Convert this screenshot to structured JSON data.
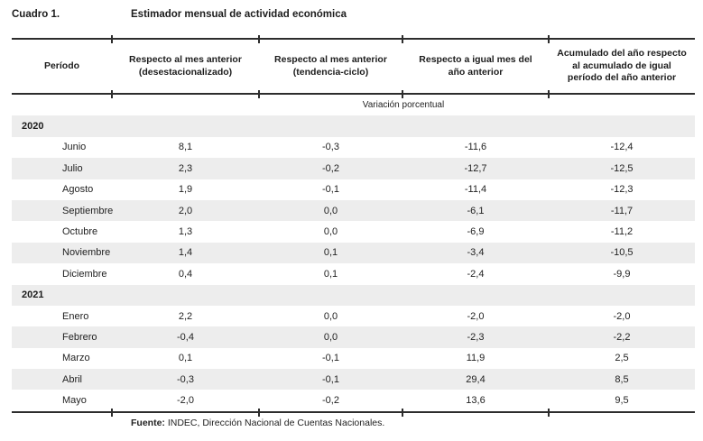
{
  "title": {
    "label": "Cuadro 1.",
    "text": "Estimador mensual de actividad económica"
  },
  "table": {
    "columns": [
      "Período",
      "Respecto al mes anterior\n(desestacionalizado)",
      "Respecto al mes anterior\n(tendencia-ciclo)",
      "Respecto a igual mes del\naño anterior",
      "Acumulado del año respecto\nal acumulado de igual\nperíodo del año anterior"
    ],
    "unit_note": "Variación porcentual",
    "rows": [
      {
        "type": "year",
        "label": "2020",
        "values": [
          "",
          "",
          "",
          ""
        ]
      },
      {
        "type": "month",
        "label": "Junio",
        "values": [
          "8,1",
          "-0,3",
          "-11,6",
          "-12,4"
        ]
      },
      {
        "type": "month",
        "label": "Julio",
        "values": [
          "2,3",
          "-0,2",
          "-12,7",
          "-12,5"
        ]
      },
      {
        "type": "month",
        "label": "Agosto",
        "values": [
          "1,9",
          "-0,1",
          "-11,4",
          "-12,3"
        ]
      },
      {
        "type": "month",
        "label": "Septiembre",
        "values": [
          "2,0",
          "0,0",
          "-6,1",
          "-11,7"
        ]
      },
      {
        "type": "month",
        "label": "Octubre",
        "values": [
          "1,3",
          "0,0",
          "-6,9",
          "-11,2"
        ]
      },
      {
        "type": "month",
        "label": "Noviembre",
        "values": [
          "1,4",
          "0,1",
          "-3,4",
          "-10,5"
        ]
      },
      {
        "type": "month",
        "label": "Diciembre",
        "values": [
          "0,4",
          "0,1",
          "-2,4",
          "-9,9"
        ]
      },
      {
        "type": "year",
        "label": "2021",
        "values": [
          "",
          "",
          "",
          ""
        ]
      },
      {
        "type": "month",
        "label": "Enero",
        "values": [
          "2,2",
          "0,0",
          "-2,0",
          "-2,0"
        ]
      },
      {
        "type": "month",
        "label": "Febrero",
        "values": [
          "-0,4",
          "0,0",
          "-2,3",
          "-2,2"
        ]
      },
      {
        "type": "month",
        "label": "Marzo",
        "values": [
          "0,1",
          "-0,1",
          "11,9",
          "2,5"
        ]
      },
      {
        "type": "month",
        "label": "Abril",
        "values": [
          "-0,3",
          "-0,1",
          "29,4",
          "8,5"
        ]
      },
      {
        "type": "month",
        "label": "Mayo",
        "values": [
          "-2,0",
          "-0,2",
          "13,6",
          "9,5"
        ]
      }
    ]
  },
  "footer": {
    "label": "Fuente:",
    "text": " INDEC, Dirección Nacional de Cuentas Nacionales."
  }
}
